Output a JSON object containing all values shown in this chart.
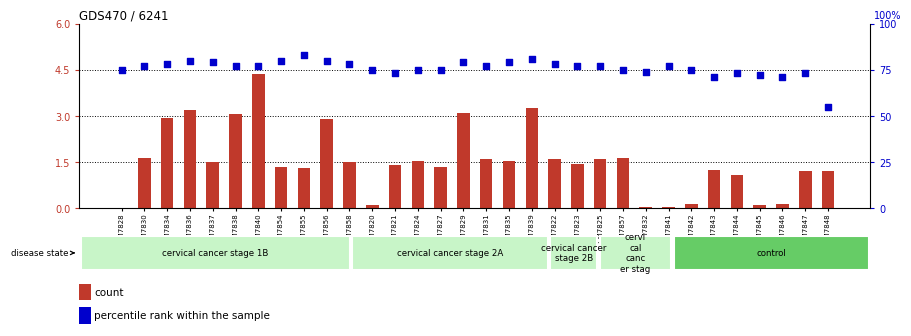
{
  "title": "GDS470 / 6241",
  "samples": [
    "GSM7828",
    "GSM7830",
    "GSM7834",
    "GSM7836",
    "GSM7837",
    "GSM7838",
    "GSM7840",
    "GSM7854",
    "GSM7855",
    "GSM7856",
    "GSM7858",
    "GSM7820",
    "GSM7821",
    "GSM7824",
    "GSM7827",
    "GSM7829",
    "GSM7831",
    "GSM7835",
    "GSM7839",
    "GSM7822",
    "GSM7823",
    "GSM7825",
    "GSM7857",
    "GSM7832",
    "GSM7841",
    "GSM7842",
    "GSM7843",
    "GSM7844",
    "GSM7845",
    "GSM7846",
    "GSM7847",
    "GSM7848"
  ],
  "counts": [
    0.0,
    1.65,
    2.95,
    3.2,
    1.5,
    3.05,
    4.35,
    1.35,
    1.3,
    2.9,
    1.5,
    0.1,
    1.4,
    1.55,
    1.35,
    3.1,
    1.6,
    1.55,
    3.25,
    1.6,
    1.45,
    1.6,
    1.65,
    0.06,
    0.06,
    0.15,
    1.25,
    1.1,
    0.1,
    0.15,
    1.2,
    1.2
  ],
  "percentiles": [
    75,
    77,
    78,
    80,
    79,
    77,
    77,
    80,
    83,
    80,
    78,
    75,
    73,
    75,
    75,
    79,
    77,
    79,
    81,
    78,
    77,
    77,
    75,
    74,
    77,
    75,
    71,
    73,
    72,
    71,
    73,
    55
  ],
  "groups": [
    {
      "label": "cervical cancer stage 1B",
      "start": 0,
      "end": 11,
      "color": "#c8f5c8"
    },
    {
      "label": "cervical cancer stage 2A",
      "start": 11,
      "end": 19,
      "color": "#c8f5c8"
    },
    {
      "label": "cervical cancer\nstage 2B",
      "start": 19,
      "end": 21,
      "color": "#c8f5c8"
    },
    {
      "label": "cervi\ncal\ncanc\ner stag",
      "start": 21,
      "end": 24,
      "color": "#c8f5c8"
    },
    {
      "label": "control",
      "start": 24,
      "end": 32,
      "color": "#7ddd7d"
    }
  ],
  "ylim_left": [
    0,
    6
  ],
  "ylim_right": [
    0,
    100
  ],
  "yticks_left": [
    0,
    1.5,
    3.0,
    4.5,
    6
  ],
  "yticks_right": [
    0,
    25,
    50,
    75,
    100
  ],
  "bar_color": "#c0392b",
  "scatter_color": "#0000cc",
  "hline_y_left": [
    1.5,
    3.0,
    4.5
  ],
  "legend_count_label": "count",
  "legend_pct_label": "percentile rank within the sample",
  "figsize": [
    9.25,
    3.36
  ],
  "dpi": 100
}
